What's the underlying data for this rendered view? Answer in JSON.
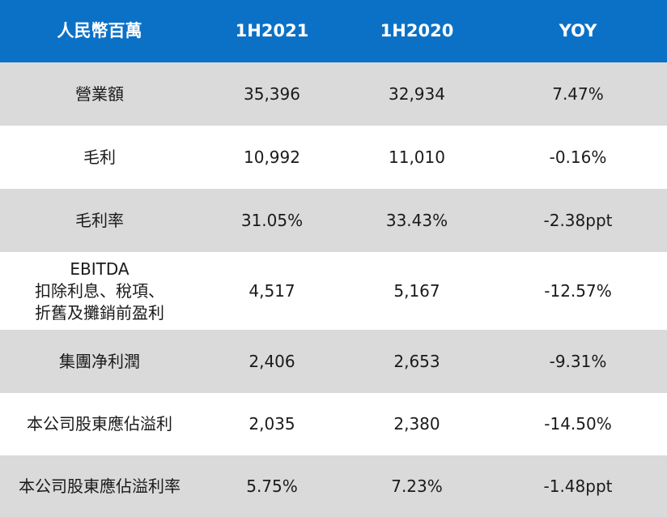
{
  "chart_data": {
    "type": "table",
    "columns": [
      "人民幣百萬",
      "1H2021",
      "1H2020",
      "YOY"
    ],
    "rows": [
      {
        "metric": [
          "營業額"
        ],
        "h2021": "35,396",
        "h2020": "32,934",
        "yoy": "7.47%"
      },
      {
        "metric": [
          "毛利"
        ],
        "h2021": "10,992",
        "h2020": "11,010",
        "yoy": "-0.16%"
      },
      {
        "metric": [
          "毛利率"
        ],
        "h2021": "31.05%",
        "h2020": "33.43%",
        "yoy": "-2.38ppt"
      },
      {
        "metric": [
          "EBITDA",
          "扣除利息、稅項、",
          "折舊及攤銷前盈利"
        ],
        "h2021": "4,517",
        "h2020": "5,167",
        "yoy": "-12.57%"
      },
      {
        "metric": [
          "集團净利潤"
        ],
        "h2021": "2,406",
        "h2020": "2,653",
        "yoy": "-9.31%"
      },
      {
        "metric": [
          "本公司股東應佔溢利"
        ],
        "h2021": "2,035",
        "h2020": "2,380",
        "yoy": "-14.50%"
      },
      {
        "metric": [
          "本公司股東應佔溢利率"
        ],
        "h2021": "5.75%",
        "h2020": "7.23%",
        "yoy": "-1.48ppt"
      }
    ]
  },
  "colors": {
    "header_bg": "#0b71c6",
    "header_text": "#ffffff",
    "stripe_gray": "#dadada",
    "stripe_white": "#ffffff",
    "body_text": "#1a1a1a"
  }
}
